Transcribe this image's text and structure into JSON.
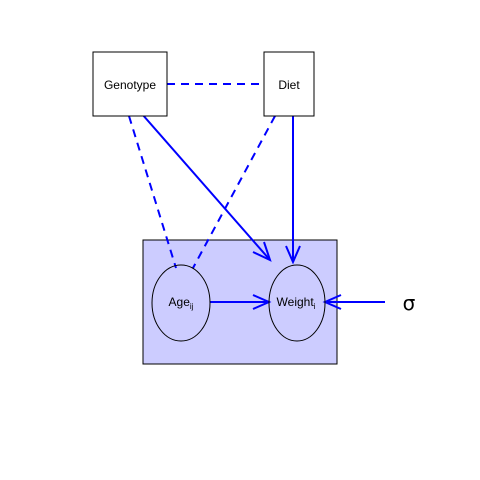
{
  "nodes": {
    "genotype": {
      "label": "Genotype"
    },
    "diet": {
      "label": "Diet"
    },
    "age": {
      "label": "Age",
      "subscript": "ij"
    },
    "weight": {
      "label": "Weight",
      "subscript": "i"
    },
    "sigma": {
      "label": "σ"
    }
  },
  "colors": {
    "edge": "#0000ff",
    "plate_fill": "#ccccff",
    "plate_stroke": "#000000",
    "node_stroke": "#000000",
    "node_fill": "#ffffff"
  },
  "edges": [
    {
      "from": "genotype",
      "to": "diet",
      "style": "dashed",
      "directed": false
    },
    {
      "from": "genotype",
      "to": "age",
      "style": "dashed",
      "directed": false
    },
    {
      "from": "diet",
      "to": "age",
      "style": "dashed",
      "directed": false
    },
    {
      "from": "genotype",
      "to": "weight",
      "style": "solid",
      "directed": true
    },
    {
      "from": "diet",
      "to": "weight",
      "style": "solid",
      "directed": true
    },
    {
      "from": "age",
      "to": "weight",
      "style": "solid",
      "directed": true
    },
    {
      "from": "sigma",
      "to": "weight",
      "style": "solid",
      "directed": true
    }
  ]
}
